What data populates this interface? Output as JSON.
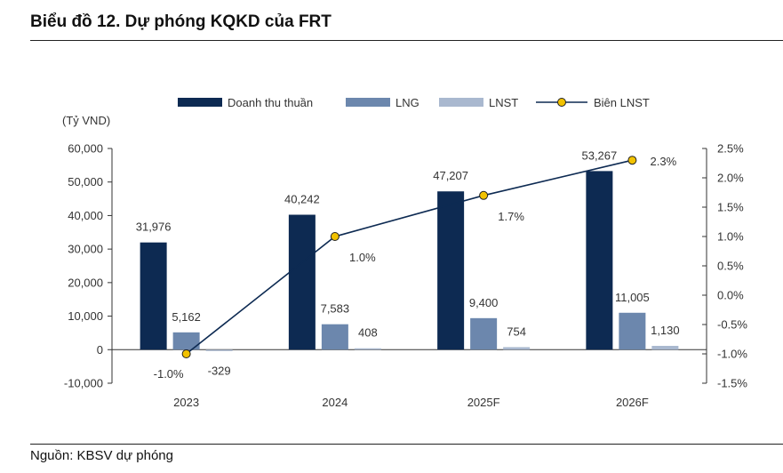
{
  "page": {
    "title": "Biểu đồ 12. Dự phóng KQKD của FRT",
    "source": "Nguồn: KBSV dự phóng"
  },
  "chart_data": {
    "type": "bar",
    "title": "Biểu đồ 12. Dự phóng KQKD của FRT",
    "ylabel": "(Tỷ VND)",
    "categories": [
      "2023",
      "2024",
      "2025F",
      "2026F"
    ],
    "ylim": [
      -10000,
      60000
    ],
    "yticks": [
      -10000,
      0,
      10000,
      20000,
      30000,
      40000,
      50000,
      60000
    ],
    "ytick_labels": [
      "-10,000",
      "0",
      "10,000",
      "20,000",
      "30,000",
      "40,000",
      "50,000",
      "60,000"
    ],
    "y2lim": [
      -1.5,
      2.5
    ],
    "y2ticks": [
      -1.5,
      -1.0,
      -0.5,
      0.0,
      0.5,
      1.0,
      1.5,
      2.0,
      2.5
    ],
    "y2tick_labels": [
      "-1.5%",
      "-1.0%",
      "-0.5%",
      "0.0%",
      "0.5%",
      "1.0%",
      "1.5%",
      "2.0%",
      "2.5%"
    ],
    "series": [
      {
        "name": "Doanh thu thuần",
        "kind": "bar",
        "color": "#0d2a52",
        "values": [
          31976,
          40242,
          47207,
          53267
        ],
        "labels": [
          "31,976",
          "40,242",
          "47,207",
          "53,267"
        ]
      },
      {
        "name": "LNG",
        "kind": "bar",
        "color": "#6c87ad",
        "values": [
          5162,
          7583,
          9400,
          11005
        ],
        "labels": [
          "5,162",
          "7,583",
          "9,400",
          "11,005"
        ]
      },
      {
        "name": "LNST",
        "kind": "bar",
        "color": "#a9b8cf",
        "values": [
          -329,
          408,
          754,
          1130
        ],
        "labels": [
          "-329",
          "408",
          "754",
          "1,130"
        ]
      },
      {
        "name": "Biên LNST",
        "kind": "line",
        "axis": "right",
        "color": "#0d2a52",
        "marker_color": "#f2c200",
        "values": [
          -1.0,
          1.0,
          1.7,
          2.3
        ],
        "labels": [
          "-1.0%",
          "1.0%",
          "1.7%",
          "2.3%"
        ]
      }
    ],
    "legend": "top-center",
    "grid": false
  }
}
